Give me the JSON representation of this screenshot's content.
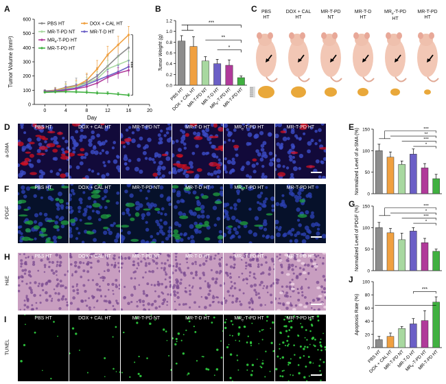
{
  "labels": {
    "A": "A",
    "B": "B",
    "C": "C",
    "D": "D",
    "E": "E",
    "F": "F",
    "G": "G",
    "H": "H",
    "I": "I",
    "J": "J"
  },
  "colors": {
    "PBS HT": "#8c8c8c",
    "DOX + CAL HT": "#f0a040",
    "MR-T-PD NT": "#a8d8a0",
    "MR-T-D HT": "#6b5fc6",
    "MRe-T-PD HT": "#b03a9a",
    "MR-T-PD HT": "#40b040"
  },
  "panelA": {
    "xlabel": "Day",
    "ylabel": "Tumor Volume (mm³)",
    "sig": "***",
    "legend": [
      {
        "key": "PBS HT",
        "text": "PBS HT"
      },
      {
        "key": "DOX + CAL HT",
        "text": "DOX + CAL HT"
      },
      {
        "key": "MR-T-PD NT",
        "text": "MR-T-PD NT"
      },
      {
        "key": "MR-T-D HT",
        "text": "MR-T-D HT"
      },
      {
        "key": "MRe-T-PD HT",
        "text": "MR",
        "sub": "e",
        "tail": "-T-PD HT"
      },
      {
        "key": "MR-T-PD HT",
        "text": "MR-T-PD HT"
      }
    ],
    "chart_data": {
      "type": "line",
      "x": [
        0,
        2,
        4,
        6,
        8,
        10,
        12,
        14,
        16
      ],
      "xticks": [
        0,
        4,
        8,
        12,
        16,
        20
      ],
      "yticks": [
        0,
        100,
        200,
        300,
        400,
        500,
        600
      ],
      "xlim": [
        -2,
        20
      ],
      "ylim": [
        0,
        600
      ],
      "series": [
        {
          "key": "PBS HT",
          "values": [
            95,
            100,
            120,
            135,
            155,
            200,
            270,
            340,
            400
          ],
          "err": [
            10,
            20,
            40,
            50,
            55,
            60,
            70,
            80,
            90
          ]
        },
        {
          "key": "DOX + CAL HT",
          "values": [
            90,
            100,
            115,
            130,
            170,
            250,
            350,
            420,
            490
          ],
          "err": [
            10,
            15,
            30,
            40,
            50,
            60,
            60,
            60,
            60
          ]
        },
        {
          "key": "MR-T-PD NT",
          "values": [
            90,
            95,
            110,
            125,
            150,
            180,
            250,
            280,
            310
          ],
          "err": [
            10,
            15,
            30,
            35,
            40,
            50,
            60,
            60,
            60
          ]
        },
        {
          "key": "MR-T-D HT",
          "values": [
            90,
            95,
            105,
            115,
            140,
            170,
            200,
            230,
            265
          ],
          "err": [
            10,
            15,
            25,
            30,
            35,
            40,
            45,
            45,
            45
          ]
        },
        {
          "key": "MRe-T-PD HT",
          "values": [
            88,
            90,
            100,
            110,
            125,
            150,
            190,
            220,
            240
          ],
          "err": [
            10,
            12,
            20,
            25,
            30,
            35,
            40,
            40,
            40
          ]
        },
        {
          "key": "MR-T-PD HT",
          "values": [
            85,
            88,
            90,
            88,
            85,
            80,
            78,
            72,
            65
          ],
          "err": [
            8,
            10,
            12,
            12,
            12,
            12,
            12,
            12,
            12
          ]
        }
      ]
    }
  },
  "panelB": {
    "ylabel": "Tumor Weight (g)",
    "categories": [
      "PBS HT",
      "DOX + CAL HT",
      "MR-T-PD NT",
      "MR-T-D HT",
      "MRe-T-PD HT",
      "MR-T-PD HT"
    ],
    "sig": [
      "***",
      "**",
      "*"
    ],
    "chart_data": {
      "type": "bar",
      "values": [
        0.82,
        0.72,
        0.45,
        0.4,
        0.37,
        0.14
      ],
      "err": [
        0.1,
        0.18,
        0.08,
        0.08,
        0.1,
        0.03
      ],
      "yticks": [
        0.0,
        0.2,
        0.4,
        0.6,
        0.8,
        1.0,
        1.2
      ],
      "ylim": [
        0,
        1.2
      ]
    }
  },
  "panelC": {
    "groups": [
      "PBS\nHT",
      "DOX + CAL\nHT",
      "MR-T-PD\nNT",
      "MR-T-D\nHT",
      "MRe-T-PD\nHT",
      "MR-T-PD\nHT"
    ]
  },
  "tileTitles": [
    "PBS HT",
    "DOX + CAL HT",
    "MR-T-PD NT",
    "MR-T-D HT",
    "MRe-T-PD HT",
    "MR-T-PD HT"
  ],
  "rowLabels": {
    "D": "a-SMA",
    "F": "PDGF",
    "H": "H&E",
    "I": "TUNEL"
  },
  "panelE": {
    "ylabel": "Normalized Level of a-SMA (%)",
    "sig": [
      "***",
      "**",
      "***",
      "*"
    ],
    "chart_data": {
      "type": "bar",
      "values": [
        100,
        85,
        68,
        92,
        60,
        35
      ],
      "err": [
        15,
        12,
        8,
        12,
        10,
        10
      ],
      "yticks": [
        0,
        50,
        100,
        150
      ],
      "ylim": [
        0,
        150
      ]
    }
  },
  "panelG": {
    "ylabel": "Normalized Level of PDGF (%)",
    "sig": [
      "***",
      "*",
      "***",
      "*"
    ],
    "chart_data": {
      "type": "bar",
      "values": [
        100,
        88,
        72,
        92,
        65,
        45
      ],
      "err": [
        12,
        10,
        15,
        8,
        10,
        5
      ],
      "yticks": [
        0,
        50,
        100,
        150
      ],
      "ylim": [
        0,
        150
      ]
    }
  },
  "panelJ": {
    "ylabel": "Apoptosis Rate (%)",
    "categories": [
      "PBS HT",
      "DOX + CAL HT",
      "MR-T-PD NT",
      "MR-T-D HT",
      "MRe-T-PD HT",
      "MR-T-PD HT"
    ],
    "sig": "***",
    "chart_data": {
      "type": "bar",
      "values": [
        12,
        17,
        29,
        36,
        41,
        69
      ],
      "err": [
        5,
        5,
        3,
        8,
        15,
        8
      ],
      "yticks": [
        0,
        20,
        40,
        60,
        80,
        100
      ],
      "ylim": [
        0,
        100
      ]
    }
  }
}
